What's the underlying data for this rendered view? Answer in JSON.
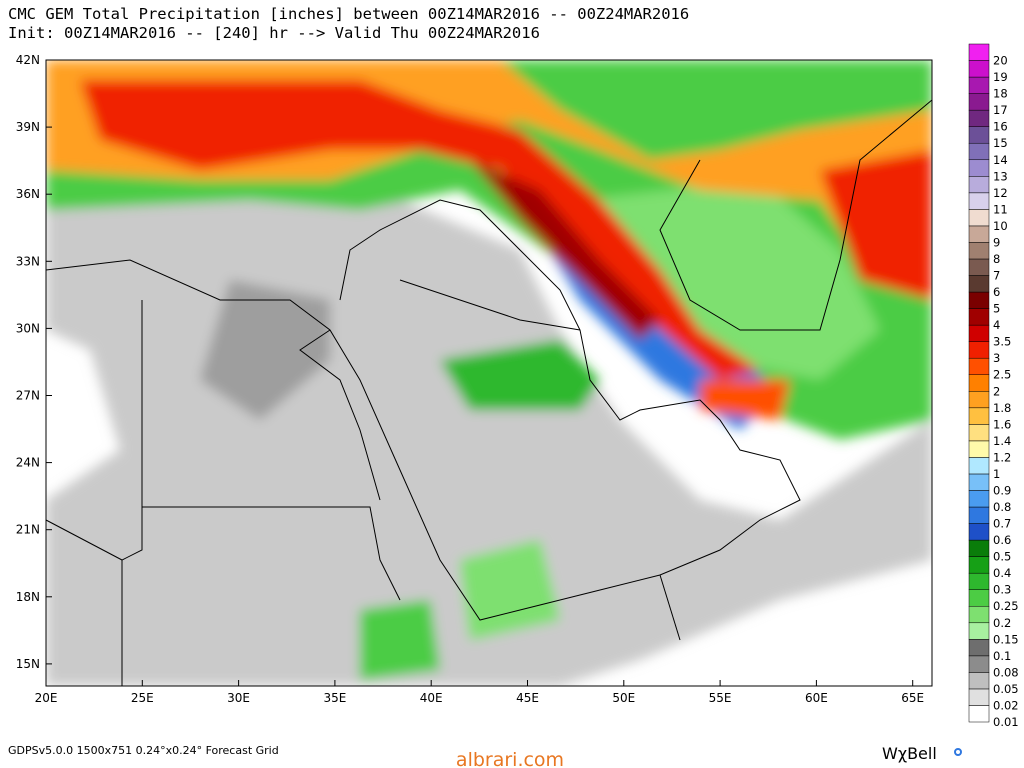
{
  "header": {
    "title": "CMC GEM Total Precipitation [inches] between 00Z14MAR2016 -- 00Z24MAR2016",
    "subtitle": "Init: 00Z14MAR2016 -- [240] hr --> Valid Thu 00Z24MAR2016"
  },
  "map": {
    "lat_labels": [
      "42N",
      "39N",
      "36N",
      "33N",
      "30N",
      "27N",
      "24N",
      "21N",
      "18N",
      "15N"
    ],
    "lon_labels": [
      "20E",
      "25E",
      "30E",
      "35E",
      "40E",
      "45E",
      "50E",
      "55E",
      "60E",
      "65E"
    ]
  },
  "colorbar": {
    "labels": [
      "0.01",
      "0.02",
      "0.05",
      "0.08",
      "0.1",
      "0.15",
      "0.2",
      "0.25",
      "0.3",
      "0.4",
      "0.5",
      "0.6",
      "0.7",
      "0.8",
      "0.9",
      "1",
      "1.2",
      "1.4",
      "1.6",
      "1.8",
      "2",
      "2.5",
      "3",
      "3.5",
      "4",
      "5",
      "6",
      "7",
      "8",
      "9",
      "10",
      "11",
      "12",
      "13",
      "14",
      "15",
      "16",
      "17",
      "18",
      "19",
      "20"
    ],
    "colors": [
      "#ffffff",
      "#e0e0e0",
      "#bfbfbf",
      "#8c8c8c",
      "#6e6e6e",
      "#a8f0a0",
      "#7ee070",
      "#4ccc44",
      "#2eb82e",
      "#16a016",
      "#0a7d0a",
      "#1e50c8",
      "#2f78e0",
      "#4a9cf0",
      "#78c0f8",
      "#b0e8ff",
      "#fffaaa",
      "#ffe080",
      "#ffc040",
      "#ffa020",
      "#ff8000",
      "#ff5000",
      "#f02000",
      "#d00000",
      "#a00000",
      "#7a0000",
      "#5a3a30",
      "#7a5a50",
      "#a08070",
      "#c8a898",
      "#f0dcd0",
      "#d8d0ec",
      "#b8acdc",
      "#9c8cd0",
      "#8070b8",
      "#6c5098",
      "#702880",
      "#8a1a90",
      "#a818b0",
      "#cc10cc",
      "#f020f0"
    ]
  },
  "footer": {
    "grid_info": "GDPSv5.0.0 1500x751 0.24°x0.24° Forecast Grid",
    "watermark": "albrari.com",
    "logo": "WχBell"
  }
}
